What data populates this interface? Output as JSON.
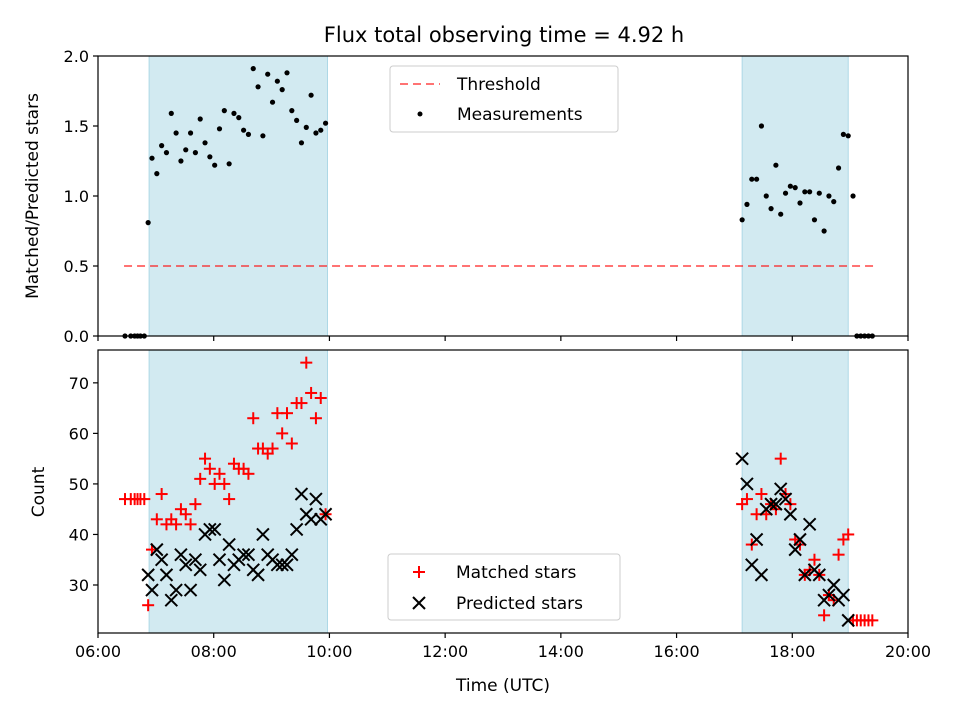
{
  "chart_data": [
    {
      "type": "scatter",
      "title": "Flux total observing time = 4.92 h",
      "xlabel": "",
      "ylabel": "Matched/Predicted stars",
      "xlim": [
        "06:00",
        "20:00"
      ],
      "ylim": [
        0,
        2.0
      ],
      "yticks": [
        "0.0",
        "0.5",
        "1.0",
        "1.5",
        "2.0"
      ],
      "xticks": [
        "06:00",
        "08:00",
        "10:00",
        "12:00",
        "14:00",
        "16:00",
        "18:00",
        "20:00"
      ],
      "shaded_intervals": [
        [
          "06:53",
          "09:58"
        ],
        [
          "17:08",
          "18:58"
        ]
      ],
      "shade_color": "#add8e6",
      "threshold": {
        "name": "Threshold",
        "y": 0.5,
        "x_range": [
          "06:27",
          "19:25"
        ],
        "color": "#ff0000",
        "style": "dashed"
      },
      "series": [
        {
          "name": "Measurements",
          "color": "#000000",
          "marker": "dot",
          "x": [
            "06:28",
            "06:34",
            "06:38",
            "06:41",
            "06:44",
            "06:48",
            "06:52",
            "06:56",
            "07:01",
            "07:06",
            "07:11",
            "07:16",
            "07:21",
            "07:26",
            "07:31",
            "07:36",
            "07:41",
            "07:46",
            "07:51",
            "07:56",
            "08:01",
            "08:06",
            "08:11",
            "08:16",
            "08:21",
            "08:26",
            "08:31",
            "08:36",
            "08:41",
            "08:46",
            "08:51",
            "08:56",
            "09:01",
            "09:06",
            "09:11",
            "09:16",
            "09:21",
            "09:26",
            "09:31",
            "09:36",
            "09:41",
            "09:46",
            "09:51",
            "09:56",
            "17:08",
            "17:13",
            "17:18",
            "17:23",
            "17:28",
            "17:33",
            "17:38",
            "17:43",
            "17:48",
            "17:53",
            "17:58",
            "18:03",
            "18:08",
            "18:13",
            "18:18",
            "18:23",
            "18:28",
            "18:33",
            "18:38",
            "18:43",
            "18:48",
            "18:53",
            "18:58",
            "19:03",
            "19:07",
            "19:11",
            "19:15",
            "19:19",
            "19:23"
          ],
          "y": [
            0.0,
            0.0,
            0.0,
            0.0,
            0.0,
            0.0,
            0.81,
            1.27,
            1.16,
            1.36,
            1.31,
            1.59,
            1.45,
            1.25,
            1.33,
            1.45,
            1.31,
            1.55,
            1.38,
            1.28,
            1.22,
            1.48,
            1.61,
            1.23,
            1.59,
            1.56,
            1.47,
            1.44,
            1.91,
            1.78,
            1.43,
            1.87,
            1.67,
            1.82,
            1.76,
            1.88,
            1.61,
            1.54,
            1.38,
            1.49,
            1.72,
            1.45,
            1.47,
            1.52,
            0.83,
            0.94,
            1.12,
            1.12,
            1.5,
            1.0,
            0.91,
            1.22,
            0.87,
            1.02,
            1.07,
            1.06,
            0.95,
            1.03,
            1.03,
            0.83,
            1.02,
            0.75,
            1.0,
            0.96,
            1.2,
            1.44,
            1.43,
            1.0,
            0.0,
            0.0,
            0.0,
            0.0,
            0.0
          ]
        }
      ],
      "legend": {
        "placement": "upper center",
        "entries": [
          "Threshold",
          "Measurements"
        ]
      }
    },
    {
      "type": "scatter",
      "title": "",
      "xlabel": "Time (UTC)",
      "ylabel": "Count",
      "xlim": [
        "06:00",
        "20:00"
      ],
      "ylim": [
        20.5,
        76.5
      ],
      "yticks": [
        "30",
        "40",
        "50",
        "60",
        "70"
      ],
      "xticks": [
        "06:00",
        "08:00",
        "10:00",
        "12:00",
        "14:00",
        "16:00",
        "18:00",
        "20:00"
      ],
      "shaded_intervals": [
        [
          "06:53",
          "09:58"
        ],
        [
          "17:08",
          "18:58"
        ]
      ],
      "shade_color": "#add8e6",
      "series": [
        {
          "name": "Matched stars",
          "color": "#ff0000",
          "marker": "plus",
          "x": [
            "06:28",
            "06:34",
            "06:38",
            "06:41",
            "06:44",
            "06:48",
            "06:52",
            "06:56",
            "07:01",
            "07:06",
            "07:11",
            "07:16",
            "07:21",
            "07:26",
            "07:31",
            "07:36",
            "07:41",
            "07:46",
            "07:51",
            "07:56",
            "08:01",
            "08:06",
            "08:11",
            "08:16",
            "08:21",
            "08:26",
            "08:31",
            "08:36",
            "08:41",
            "08:46",
            "08:51",
            "08:56",
            "09:01",
            "09:06",
            "09:11",
            "09:16",
            "09:21",
            "09:26",
            "09:31",
            "09:36",
            "09:41",
            "09:46",
            "09:51",
            "09:56",
            "17:08",
            "17:13",
            "17:18",
            "17:23",
            "17:28",
            "17:33",
            "17:38",
            "17:43",
            "17:48",
            "17:53",
            "17:58",
            "18:03",
            "18:08",
            "18:13",
            "18:18",
            "18:23",
            "18:28",
            "18:33",
            "18:38",
            "18:43",
            "18:48",
            "18:53",
            "18:58",
            "19:03",
            "19:07",
            "19:11",
            "19:15",
            "19:19",
            "19:23"
          ],
          "y": [
            47,
            47,
            47,
            47,
            47,
            47,
            26,
            37,
            43,
            48,
            42,
            43,
            42,
            45,
            44,
            42,
            46,
            51,
            55,
            53,
            50,
            52,
            50,
            47,
            54,
            53,
            53,
            52,
            63,
            57,
            57,
            56,
            57,
            64,
            60,
            64,
            58,
            66,
            66,
            74,
            68,
            63,
            67,
            44,
            46,
            47,
            38,
            44,
            48,
            44,
            46,
            45,
            55,
            48,
            46,
            39,
            38,
            32,
            33,
            35,
            32,
            24,
            28,
            27,
            36,
            39,
            40,
            23,
            23,
            23,
            23,
            23,
            23
          ]
        },
        {
          "name": "Predicted stars",
          "color": "#000000",
          "marker": "x",
          "x": [
            "06:52",
            "06:56",
            "07:01",
            "07:06",
            "07:11",
            "07:16",
            "07:21",
            "07:26",
            "07:31",
            "07:36",
            "07:41",
            "07:46",
            "07:51",
            "07:56",
            "08:01",
            "08:06",
            "08:11",
            "08:16",
            "08:21",
            "08:26",
            "08:31",
            "08:36",
            "08:41",
            "08:46",
            "08:51",
            "08:56",
            "09:01",
            "09:06",
            "09:11",
            "09:16",
            "09:21",
            "09:26",
            "09:31",
            "09:36",
            "09:41",
            "09:46",
            "09:51",
            "09:56",
            "17:08",
            "17:13",
            "17:18",
            "17:23",
            "17:28",
            "17:33",
            "17:38",
            "17:43",
            "17:48",
            "17:53",
            "17:58",
            "18:03",
            "18:08",
            "18:13",
            "18:18",
            "18:23",
            "18:28",
            "18:33",
            "18:38",
            "18:43",
            "18:48",
            "18:53",
            "18:58"
          ],
          "y": [
            32,
            29,
            37,
            35,
            32,
            27,
            29,
            36,
            34,
            29,
            35,
            33,
            40,
            41,
            41,
            35,
            31,
            38,
            34,
            35,
            36,
            36,
            33,
            32,
            40,
            36,
            35,
            34,
            34,
            34,
            36,
            41,
            48,
            44,
            43,
            47,
            43,
            44,
            55,
            50,
            34,
            39,
            32,
            45,
            46,
            46,
            49,
            47,
            44,
            37,
            39,
            32,
            42,
            33,
            32,
            27,
            28,
            30,
            27,
            28,
            23
          ]
        }
      ],
      "legend": {
        "placement": "lower center",
        "entries": [
          "Matched stars",
          "Predicted stars"
        ]
      }
    }
  ]
}
